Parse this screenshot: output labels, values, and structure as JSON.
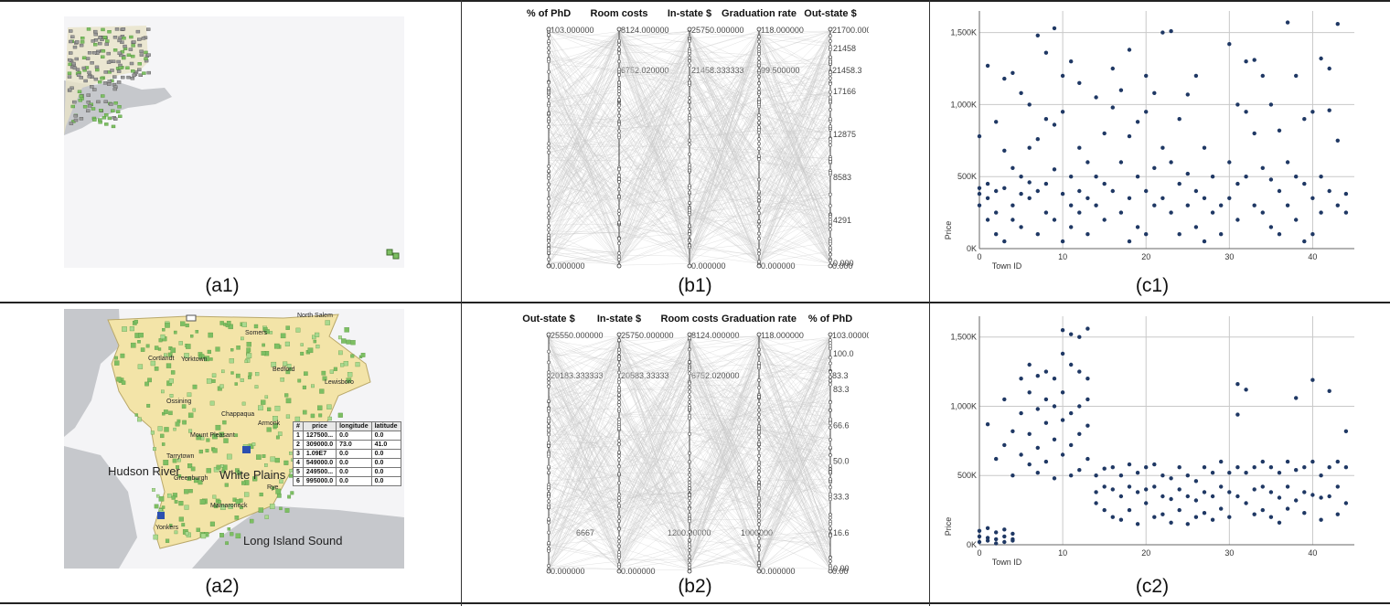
{
  "captions": {
    "a1": "(a1)",
    "b1": "(b1)",
    "c1": "(c1)",
    "a2": "(a2)",
    "b2": "(b2)",
    "c2": "(c2)"
  },
  "map": {
    "labels": {
      "hudson": "Hudson River",
      "white_plains": "White Plains",
      "long_island": "Long Island Sound",
      "north_salem": "North Salem",
      "somers": "Somers",
      "cortlandt": "Cortlandt",
      "yorktown": "Yorktown",
      "bedford": "Bedford",
      "lewisboro": "Lewisboro",
      "ossining": "Ossining",
      "chappaqua": "Chappaqua",
      "armonk": "Armonk",
      "mount_pleasant": "Mount Pleasant",
      "tarrytown": "Tarrytown",
      "greenburgh": "Greenburgh",
      "rye": "Rye",
      "mamaroneck": "Mamaroneck",
      "yonkers": "Yonkers"
    },
    "table": {
      "headers": [
        "#",
        "price",
        "longitude",
        "latitude"
      ],
      "rows": [
        [
          "1",
          "127500...",
          "0.0",
          "0.0"
        ],
        [
          "2",
          "309000.0",
          "73.0",
          "41.0"
        ],
        [
          "3",
          "1.09E7",
          "0.0",
          "0.0"
        ],
        [
          "4",
          "549000.0",
          "0.0",
          "0.0"
        ],
        [
          "5",
          "249500...",
          "0.0",
          "0.0"
        ],
        [
          "6",
          "995000.0",
          "0.0",
          "0.0"
        ]
      ]
    },
    "colors": {
      "land": "#f3e4a8",
      "water": "#c6c8cc",
      "marker": "#7dbf63",
      "marker_dark": "#4f8f3a"
    }
  },
  "chart_data": [
    {
      "id": "b1",
      "type": "parallel_coordinates",
      "axes": [
        "% of PhD",
        "Room costs",
        "In-state $",
        "Graduation rate",
        "Out-state $"
      ],
      "axis_top_ticks": [
        "103.000000",
        "8124.000000",
        "25750.000000",
        "118.000000",
        "21700.000000"
      ],
      "axis_mid_ticks": [
        "",
        "6752.020000",
        "21458.333333",
        "99.500000",
        "21458.3"
      ],
      "axis_bottom_ticks": [
        "0.000000",
        "",
        "0.000000",
        "0.000000",
        "0.000"
      ],
      "right_ticks": [
        "21458",
        "17166",
        "12875",
        "8583",
        "4291",
        "0.000"
      ],
      "line_color": "#c8c8c8"
    },
    {
      "id": "b2",
      "type": "parallel_coordinates",
      "axes": [
        "Out-state $",
        "In-state $",
        "Room costs",
        "Graduation rate",
        "% of PhD"
      ],
      "axis_top_ticks": [
        "25550.000000",
        "25750.000000",
        "8124.000000",
        "118.000000",
        "103.000000"
      ],
      "axis_mid_ticks": [
        "20183.333333",
        "20583.33333",
        "6752.020000",
        "",
        "83.3"
      ],
      "axis_bottom_ticks": [
        "0.000000",
        "0.000000",
        "",
        "0.000000",
        "0.00"
      ],
      "extra_ticks": [
        "6667",
        "1200.00000",
        "1000000"
      ],
      "right_ticks": [
        "100.0",
        "83.3",
        "66.6",
        "50.0",
        "33.3",
        "16.6",
        "0.00"
      ],
      "line_color": "#c8c8c8"
    },
    {
      "id": "c1",
      "type": "scatter",
      "xlabel": "Town ID",
      "ylabel": "Price",
      "xlim": [
        0,
        45
      ],
      "ylim": [
        0,
        1650000
      ],
      "xticks": [
        "0",
        "10",
        "20",
        "30",
        "40"
      ],
      "yticks": [
        "0K",
        "500K",
        "1,000K",
        "1,500K"
      ],
      "point_color": "#1f3864",
      "points": [
        [
          0,
          420000
        ],
        [
          0,
          380000
        ],
        [
          0,
          780000
        ],
        [
          0,
          300000
        ],
        [
          1,
          1270000
        ],
        [
          1,
          450000
        ],
        [
          1,
          350000
        ],
        [
          1,
          200000
        ],
        [
          2,
          880000
        ],
        [
          2,
          400000
        ],
        [
          2,
          100000
        ],
        [
          2,
          250000
        ],
        [
          3,
          1180000
        ],
        [
          3,
          680000
        ],
        [
          3,
          420000
        ],
        [
          3,
          50000
        ],
        [
          4,
          1220000
        ],
        [
          4,
          560000
        ],
        [
          4,
          300000
        ],
        [
          4,
          200000
        ],
        [
          5,
          1080000
        ],
        [
          5,
          500000
        ],
        [
          5,
          380000
        ],
        [
          5,
          150000
        ],
        [
          6,
          1000000
        ],
        [
          6,
          460000
        ],
        [
          6,
          350000
        ],
        [
          6,
          700000
        ],
        [
          7,
          1480000
        ],
        [
          7,
          760000
        ],
        [
          7,
          400000
        ],
        [
          7,
          100000
        ],
        [
          8,
          1360000
        ],
        [
          8,
          900000
        ],
        [
          8,
          450000
        ],
        [
          8,
          250000
        ],
        [
          9,
          1530000
        ],
        [
          9,
          860000
        ],
        [
          9,
          200000
        ],
        [
          9,
          550000
        ],
        [
          10,
          1200000
        ],
        [
          10,
          950000
        ],
        [
          10,
          380000
        ],
        [
          10,
          50000
        ],
        [
          11,
          1300000
        ],
        [
          11,
          500000
        ],
        [
          11,
          300000
        ],
        [
          11,
          150000
        ],
        [
          12,
          1150000
        ],
        [
          12,
          700000
        ],
        [
          12,
          400000
        ],
        [
          12,
          250000
        ],
        [
          13,
          600000
        ],
        [
          13,
          350000
        ],
        [
          13,
          100000
        ],
        [
          14,
          1050000
        ],
        [
          14,
          500000
        ],
        [
          14,
          300000
        ],
        [
          15,
          800000
        ],
        [
          15,
          450000
        ],
        [
          15,
          200000
        ],
        [
          16,
          1250000
        ],
        [
          16,
          980000
        ],
        [
          16,
          400000
        ],
        [
          17,
          1100000
        ],
        [
          17,
          600000
        ],
        [
          17,
          250000
        ],
        [
          18,
          1380000
        ],
        [
          18,
          780000
        ],
        [
          18,
          350000
        ],
        [
          18,
          50000
        ],
        [
          19,
          880000
        ],
        [
          19,
          500000
        ],
        [
          19,
          150000
        ],
        [
          20,
          1200000
        ],
        [
          20,
          950000
        ],
        [
          20,
          400000
        ],
        [
          20,
          100000
        ],
        [
          21,
          1080000
        ],
        [
          21,
          560000
        ],
        [
          21,
          300000
        ],
        [
          22,
          1500000
        ],
        [
          22,
          700000
        ],
        [
          22,
          350000
        ],
        [
          23,
          1510000
        ],
        [
          23,
          600000
        ],
        [
          23,
          250000
        ],
        [
          24,
          900000
        ],
        [
          24,
          450000
        ],
        [
          24,
          100000
        ],
        [
          25,
          1070000
        ],
        [
          25,
          520000
        ],
        [
          25,
          300000
        ],
        [
          26,
          1200000
        ],
        [
          26,
          400000
        ],
        [
          26,
          150000
        ],
        [
          27,
          700000
        ],
        [
          27,
          350000
        ],
        [
          27,
          50000
        ],
        [
          28,
          500000
        ],
        [
          28,
          250000
        ],
        [
          29,
          300000
        ],
        [
          29,
          100000
        ],
        [
          30,
          1420000
        ],
        [
          30,
          600000
        ],
        [
          30,
          350000
        ],
        [
          31,
          1000000
        ],
        [
          31,
          450000
        ],
        [
          31,
          200000
        ],
        [
          32,
          1300000
        ],
        [
          32,
          950000
        ],
        [
          32,
          500000
        ],
        [
          33,
          1310000
        ],
        [
          33,
          800000
        ],
        [
          33,
          300000
        ],
        [
          34,
          1200000
        ],
        [
          34,
          560000
        ],
        [
          34,
          250000
        ],
        [
          35,
          1000000
        ],
        [
          35,
          480000
        ],
        [
          35,
          150000
        ],
        [
          36,
          820000
        ],
        [
          36,
          400000
        ],
        [
          36,
          100000
        ],
        [
          37,
          1570000
        ],
        [
          37,
          600000
        ],
        [
          37,
          300000
        ],
        [
          38,
          1200000
        ],
        [
          38,
          500000
        ],
        [
          38,
          200000
        ],
        [
          39,
          900000
        ],
        [
          39,
          450000
        ],
        [
          39,
          50000
        ],
        [
          40,
          950000
        ],
        [
          40,
          350000
        ],
        [
          40,
          100000
        ],
        [
          41,
          1320000
        ],
        [
          41,
          500000
        ],
        [
          41,
          250000
        ],
        [
          42,
          1250000
        ],
        [
          42,
          960000
        ],
        [
          42,
          400000
        ],
        [
          43,
          1560000
        ],
        [
          43,
          750000
        ],
        [
          43,
          300000
        ],
        [
          44,
          380000
        ],
        [
          44,
          250000
        ]
      ]
    },
    {
      "id": "c2",
      "type": "scatter",
      "xlabel": "Town ID",
      "ylabel": "Price",
      "xlim": [
        0,
        45
      ],
      "ylim": [
        0,
        1650000
      ],
      "xticks": [
        "0",
        "10",
        "20",
        "30",
        "40"
      ],
      "yticks": [
        "0K",
        "500K",
        "1,000K",
        "1,500K"
      ],
      "point_color": "#1f3864",
      "points": [
        [
          0,
          100000
        ],
        [
          0,
          60000
        ],
        [
          0,
          20000
        ],
        [
          1,
          120000
        ],
        [
          1,
          50000
        ],
        [
          1,
          30000
        ],
        [
          2,
          90000
        ],
        [
          2,
          40000
        ],
        [
          2,
          10000
        ],
        [
          3,
          110000
        ],
        [
          3,
          60000
        ],
        [
          3,
          20000
        ],
        [
          4,
          80000
        ],
        [
          4,
          40000
        ],
        [
          4,
          30000
        ],
        [
          1,
          870000
        ],
        [
          2,
          620000
        ],
        [
          3,
          1050000
        ],
        [
          3,
          720000
        ],
        [
          4,
          820000
        ],
        [
          4,
          500000
        ],
        [
          5,
          1200000
        ],
        [
          5,
          950000
        ],
        [
          5,
          650000
        ],
        [
          6,
          1300000
        ],
        [
          6,
          1100000
        ],
        [
          6,
          800000
        ],
        [
          6,
          580000
        ],
        [
          7,
          1220000
        ],
        [
          7,
          980000
        ],
        [
          7,
          700000
        ],
        [
          7,
          520000
        ],
        [
          8,
          1250000
        ],
        [
          8,
          1050000
        ],
        [
          8,
          880000
        ],
        [
          8,
          600000
        ],
        [
          9,
          1200000
        ],
        [
          9,
          1000000
        ],
        [
          9,
          760000
        ],
        [
          9,
          480000
        ],
        [
          10,
          1550000
        ],
        [
          10,
          1380000
        ],
        [
          10,
          1100000
        ],
        [
          10,
          900000
        ],
        [
          10,
          650000
        ],
        [
          11,
          1520000
        ],
        [
          11,
          1300000
        ],
        [
          11,
          950000
        ],
        [
          11,
          720000
        ],
        [
          11,
          500000
        ],
        [
          12,
          1500000
        ],
        [
          12,
          1250000
        ],
        [
          12,
          1000000
        ],
        [
          12,
          800000
        ],
        [
          12,
          540000
        ],
        [
          13,
          1560000
        ],
        [
          13,
          1200000
        ],
        [
          13,
          1050000
        ],
        [
          13,
          860000
        ],
        [
          13,
          620000
        ],
        [
          14,
          500000
        ],
        [
          14,
          380000
        ],
        [
          14,
          300000
        ],
        [
          15,
          550000
        ],
        [
          15,
          420000
        ],
        [
          15,
          250000
        ],
        [
          16,
          560000
        ],
        [
          16,
          400000
        ],
        [
          16,
          200000
        ],
        [
          17,
          500000
        ],
        [
          17,
          350000
        ],
        [
          17,
          180000
        ],
        [
          18,
          580000
        ],
        [
          18,
          420000
        ],
        [
          18,
          250000
        ],
        [
          19,
          520000
        ],
        [
          19,
          380000
        ],
        [
          19,
          150000
        ],
        [
          20,
          560000
        ],
        [
          20,
          400000
        ],
        [
          20,
          300000
        ],
        [
          21,
          580000
        ],
        [
          21,
          420000
        ],
        [
          21,
          200000
        ],
        [
          22,
          500000
        ],
        [
          22,
          350000
        ],
        [
          22,
          220000
        ],
        [
          23,
          480000
        ],
        [
          23,
          330000
        ],
        [
          23,
          160000
        ],
        [
          24,
          560000
        ],
        [
          24,
          400000
        ],
        [
          24,
          250000
        ],
        [
          25,
          500000
        ],
        [
          25,
          350000
        ],
        [
          25,
          150000
        ],
        [
          26,
          460000
        ],
        [
          26,
          320000
        ],
        [
          26,
          200000
        ],
        [
          27,
          560000
        ],
        [
          27,
          380000
        ],
        [
          27,
          230000
        ],
        [
          28,
          520000
        ],
        [
          28,
          350000
        ],
        [
          28,
          180000
        ],
        [
          29,
          600000
        ],
        [
          29,
          420000
        ],
        [
          29,
          260000
        ],
        [
          30,
          520000
        ],
        [
          30,
          380000
        ],
        [
          30,
          200000
        ],
        [
          31,
          1160000
        ],
        [
          31,
          940000
        ],
        [
          31,
          560000
        ],
        [
          31,
          350000
        ],
        [
          32,
          1120000
        ],
        [
          32,
          520000
        ],
        [
          32,
          300000
        ],
        [
          33,
          560000
        ],
        [
          33,
          400000
        ],
        [
          33,
          220000
        ],
        [
          34,
          600000
        ],
        [
          34,
          420000
        ],
        [
          34,
          250000
        ],
        [
          35,
          560000
        ],
        [
          35,
          380000
        ],
        [
          35,
          200000
        ],
        [
          36,
          520000
        ],
        [
          36,
          340000
        ],
        [
          36,
          160000
        ],
        [
          37,
          600000
        ],
        [
          37,
          420000
        ],
        [
          37,
          260000
        ],
        [
          38,
          1060000
        ],
        [
          38,
          540000
        ],
        [
          38,
          320000
        ],
        [
          39,
          560000
        ],
        [
          39,
          380000
        ],
        [
          39,
          230000
        ],
        [
          40,
          1190000
        ],
        [
          40,
          600000
        ],
        [
          40,
          360000
        ],
        [
          41,
          500000
        ],
        [
          41,
          340000
        ],
        [
          41,
          180000
        ],
        [
          42,
          1110000
        ],
        [
          42,
          560000
        ],
        [
          42,
          350000
        ],
        [
          43,
          600000
        ],
        [
          43,
          420000
        ],
        [
          43,
          220000
        ],
        [
          44,
          820000
        ],
        [
          44,
          560000
        ],
        [
          44,
          300000
        ]
      ]
    }
  ]
}
